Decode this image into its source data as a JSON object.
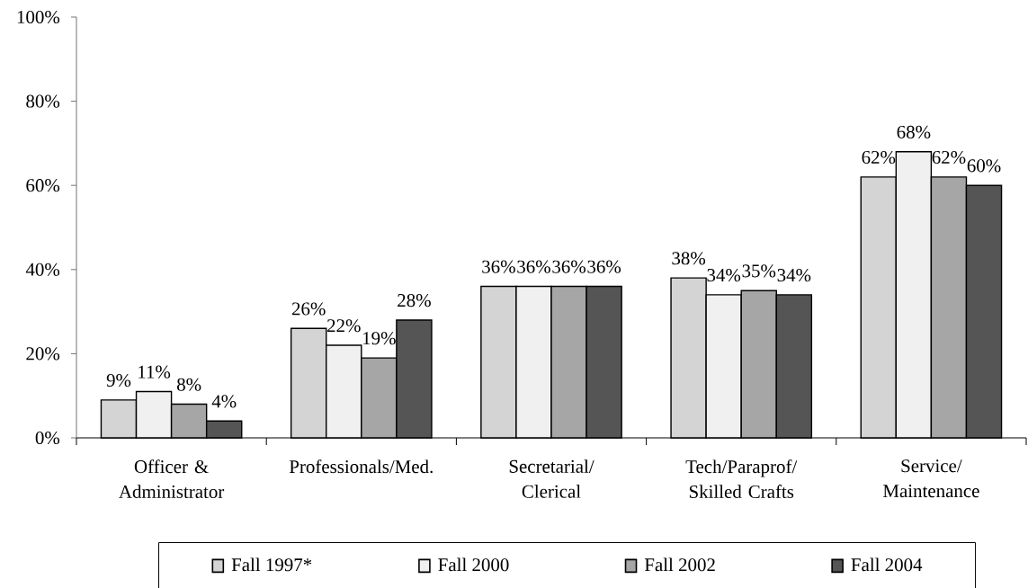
{
  "chart_data": {
    "type": "bar",
    "categories": [
      "Officer & Administrator",
      "Professionals/Med.",
      "Secretarial/ Clerical",
      "Tech/Paraprof/ Skilled Crafts",
      "Service/ Maintenance"
    ],
    "series": [
      {
        "name": "Fall 1997*",
        "color": "#d4d4d4",
        "values": [
          9,
          26,
          36,
          38,
          62
        ],
        "value_labels": [
          "9%",
          "26%",
          "36%",
          "38%",
          "62%"
        ]
      },
      {
        "name": "Fall 2000",
        "color": "#f0f0f0",
        "values": [
          11,
          22,
          36,
          34,
          68
        ],
        "value_labels": [
          "11%",
          "22%",
          "36%",
          "34%",
          "68%"
        ]
      },
      {
        "name": "Fall 2002",
        "color": "#a6a6a6",
        "values": [
          8,
          19,
          36,
          35,
          62
        ],
        "value_labels": [
          "8%",
          "19%",
          "36%",
          "35%",
          "62%"
        ]
      },
      {
        "name": "Fall 2004",
        "color": "#555555",
        "values": [
          4,
          28,
          36,
          34,
          60
        ],
        "value_labels": [
          "4%",
          "28%",
          "36%",
          "34%",
          "60%"
        ]
      }
    ],
    "ylim": [
      0,
      100
    ],
    "yticks": [
      {
        "value": 0,
        "label": "0%"
      },
      {
        "value": 20,
        "label": "20%"
      },
      {
        "value": 40,
        "label": "40%"
      },
      {
        "value": 60,
        "label": "60%"
      },
      {
        "value": 80,
        "label": "80%"
      },
      {
        "value": 100,
        "label": "100%"
      }
    ],
    "legend": "bottom"
  }
}
